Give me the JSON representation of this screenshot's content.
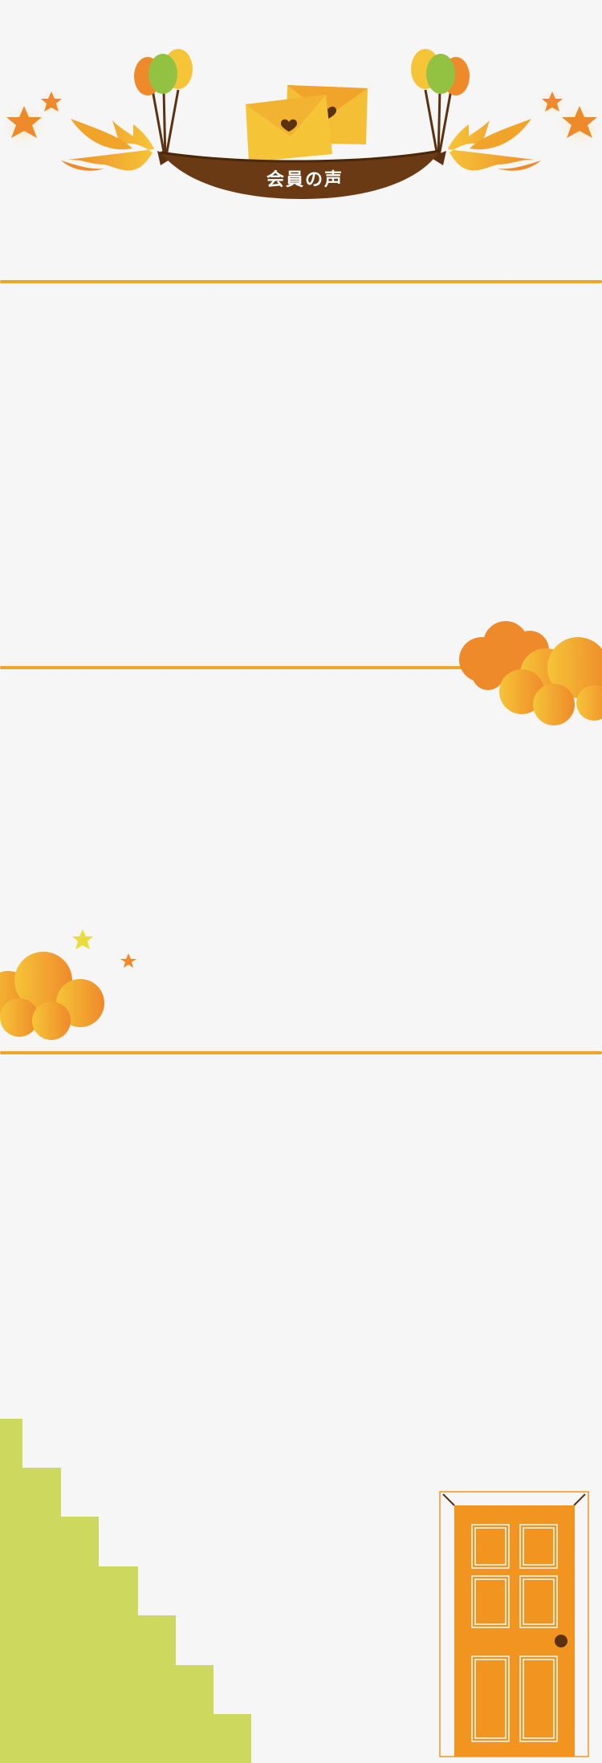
{
  "header": {
    "banner_title": "会員の声"
  },
  "colors": {
    "background": "#f6f6f6",
    "accent_orange": "#f0a52a",
    "deep_orange": "#ee8a2a",
    "yellow": "#f6c437",
    "green": "#93c242",
    "banner_brown": "#6a3a14",
    "stairs_green": "#ccd85e",
    "door_orange": "#f29520"
  },
  "icons": {
    "left_bird": "bird-icon",
    "right_bird": "bird-icon",
    "balloons": "balloon-bunch-icon",
    "envelopes": "envelope-heart-icon",
    "stars": "star-icon",
    "clouds": "cloud-icon",
    "door": "door-icon",
    "stairs": "stairs-icon"
  }
}
